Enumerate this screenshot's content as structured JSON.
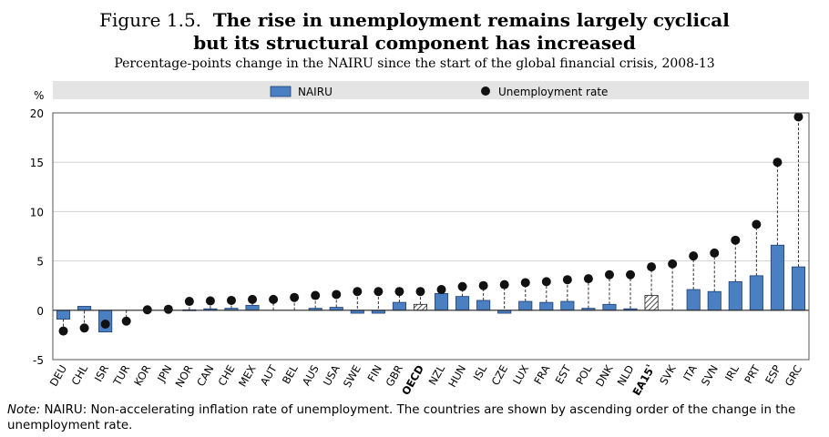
{
  "figure": {
    "number": "Figure 1.5.",
    "title_line1": "The rise in unemployment remains largely cyclical",
    "title_line2": "but its structural component has increased",
    "subtitle": "Percentage-points change in the NAIRU since the start of the global financial crisis, 2008-13"
  },
  "note": {
    "label": "Note:",
    "text": "NAIRU: Non-accelerating inflation rate of unemployment. The countries are shown by ascending order of the change in the unemployment rate."
  },
  "colors": {
    "bar": "#4a7fc1",
    "bar_stroke": "#1f3f73",
    "legend_bg": "#e4e4e4",
    "dot": "#111111"
  },
  "chart_data": {
    "type": "bar",
    "ylabel": "%",
    "ylim": [
      -5,
      20
    ],
    "yticks": [
      "-5",
      "0",
      "5",
      "10",
      "15",
      "20"
    ],
    "ytick_values": [
      -5,
      0,
      5,
      10,
      15,
      20
    ],
    "grid": true,
    "legend": {
      "position": "top",
      "nairu_label": "NAIRU",
      "unemp_label": "Unemployment rate"
    },
    "categories": [
      "DEU",
      "CHL",
      "ISR",
      "TUR",
      "KOR",
      "JPN",
      "NOR",
      "CAN",
      "CHE",
      "MEX",
      "AUT",
      "BEL",
      "AUS",
      "USA",
      "SWE",
      "FIN",
      "GBR",
      "OECD",
      "NZL",
      "HUN",
      "ISL",
      "CZE",
      "LUX",
      "FRA",
      "EST",
      "POL",
      "DNK",
      "NLD",
      "EA15",
      "SVK",
      "ITA",
      "SVN",
      "IRL",
      "PRT",
      "ESP",
      "GRC"
    ],
    "category_suffix": {
      "EA15": "¹"
    },
    "highlighted": [
      "OECD",
      "EA15"
    ],
    "series": [
      {
        "name": "NAIRU",
        "kind": "bar",
        "values": [
          -0.9,
          0.4,
          -2.2,
          0,
          0,
          0,
          0.05,
          0.15,
          0.2,
          0.5,
          0,
          0,
          0.2,
          0.3,
          -0.3,
          -0.3,
          0.8,
          0.6,
          1.7,
          1.4,
          1.0,
          -0.3,
          0.9,
          0.8,
          0.9,
          0.2,
          0.6,
          0.15,
          1.5,
          0,
          2.1,
          1.9,
          2.9,
          3.5,
          6.6,
          4.4
        ]
      },
      {
        "name": "Unemployment rate",
        "kind": "dot",
        "values": [
          -2.1,
          -1.8,
          -1.4,
          -1.1,
          0.05,
          0.1,
          0.9,
          0.95,
          1.0,
          1.1,
          1.1,
          1.3,
          1.5,
          1.6,
          1.9,
          1.9,
          1.9,
          1.9,
          2.1,
          2.4,
          2.5,
          2.6,
          2.8,
          2.9,
          3.1,
          3.2,
          3.6,
          3.6,
          4.4,
          4.7,
          5.5,
          5.8,
          7.1,
          8.7,
          15.0,
          19.6
        ]
      }
    ]
  }
}
